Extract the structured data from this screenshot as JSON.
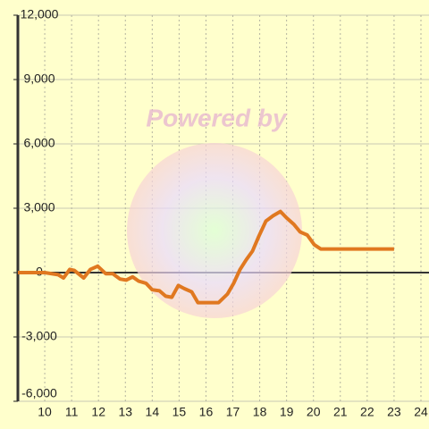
{
  "chart_data": {
    "type": "line",
    "watermark": "Powered by",
    "x": [
      9,
      10,
      10.5,
      10.7,
      10.93,
      11.1,
      11.45,
      11.7,
      11.97,
      12.27,
      12.53,
      12.8,
      13.03,
      13.27,
      13.5,
      13.77,
      14,
      14.27,
      14.5,
      14.73,
      14.97,
      15.2,
      15.47,
      15.7,
      16,
      16.47,
      16.8,
      17.03,
      17.27,
      17.5,
      17.73,
      17.97,
      18.23,
      18.5,
      18.77,
      19,
      19.27,
      19.5,
      19.77,
      20.03,
      20.27,
      23
    ],
    "series": [
      {
        "color": "#e07820",
        "values": [
          0,
          0,
          -100,
          -250,
          150,
          100,
          -250,
          150,
          300,
          -50,
          -50,
          -300,
          -350,
          -200,
          -400,
          -500,
          -800,
          -850,
          -1100,
          -1150,
          -600,
          -750,
          -900,
          -1400,
          -1400,
          -1400,
          -1000,
          -500,
          150,
          600,
          1000,
          1700,
          2400,
          2650,
          2850,
          2550,
          2250,
          1900,
          1750,
          1300,
          1100,
          1100
        ]
      }
    ],
    "xlim": [
      9,
      24.3
    ],
    "xticks": [
      10,
      11,
      12,
      13,
      14,
      15,
      16,
      17,
      18,
      19,
      20,
      21,
      22,
      23,
      24
    ],
    "ylim": [
      -6000,
      12000
    ],
    "yticks": [
      {
        "value": -6000,
        "label": "-6,000"
      },
      {
        "value": -3000,
        "label": "-3,000"
      },
      0,
      {
        "value": 3000,
        "label": "3,000"
      },
      {
        "value": 6000,
        "label": "6,000"
      },
      {
        "value": 9000,
        "label": "9,000"
      },
      {
        "value": 12000,
        "label": "12,000"
      }
    ],
    "grid": true
  }
}
